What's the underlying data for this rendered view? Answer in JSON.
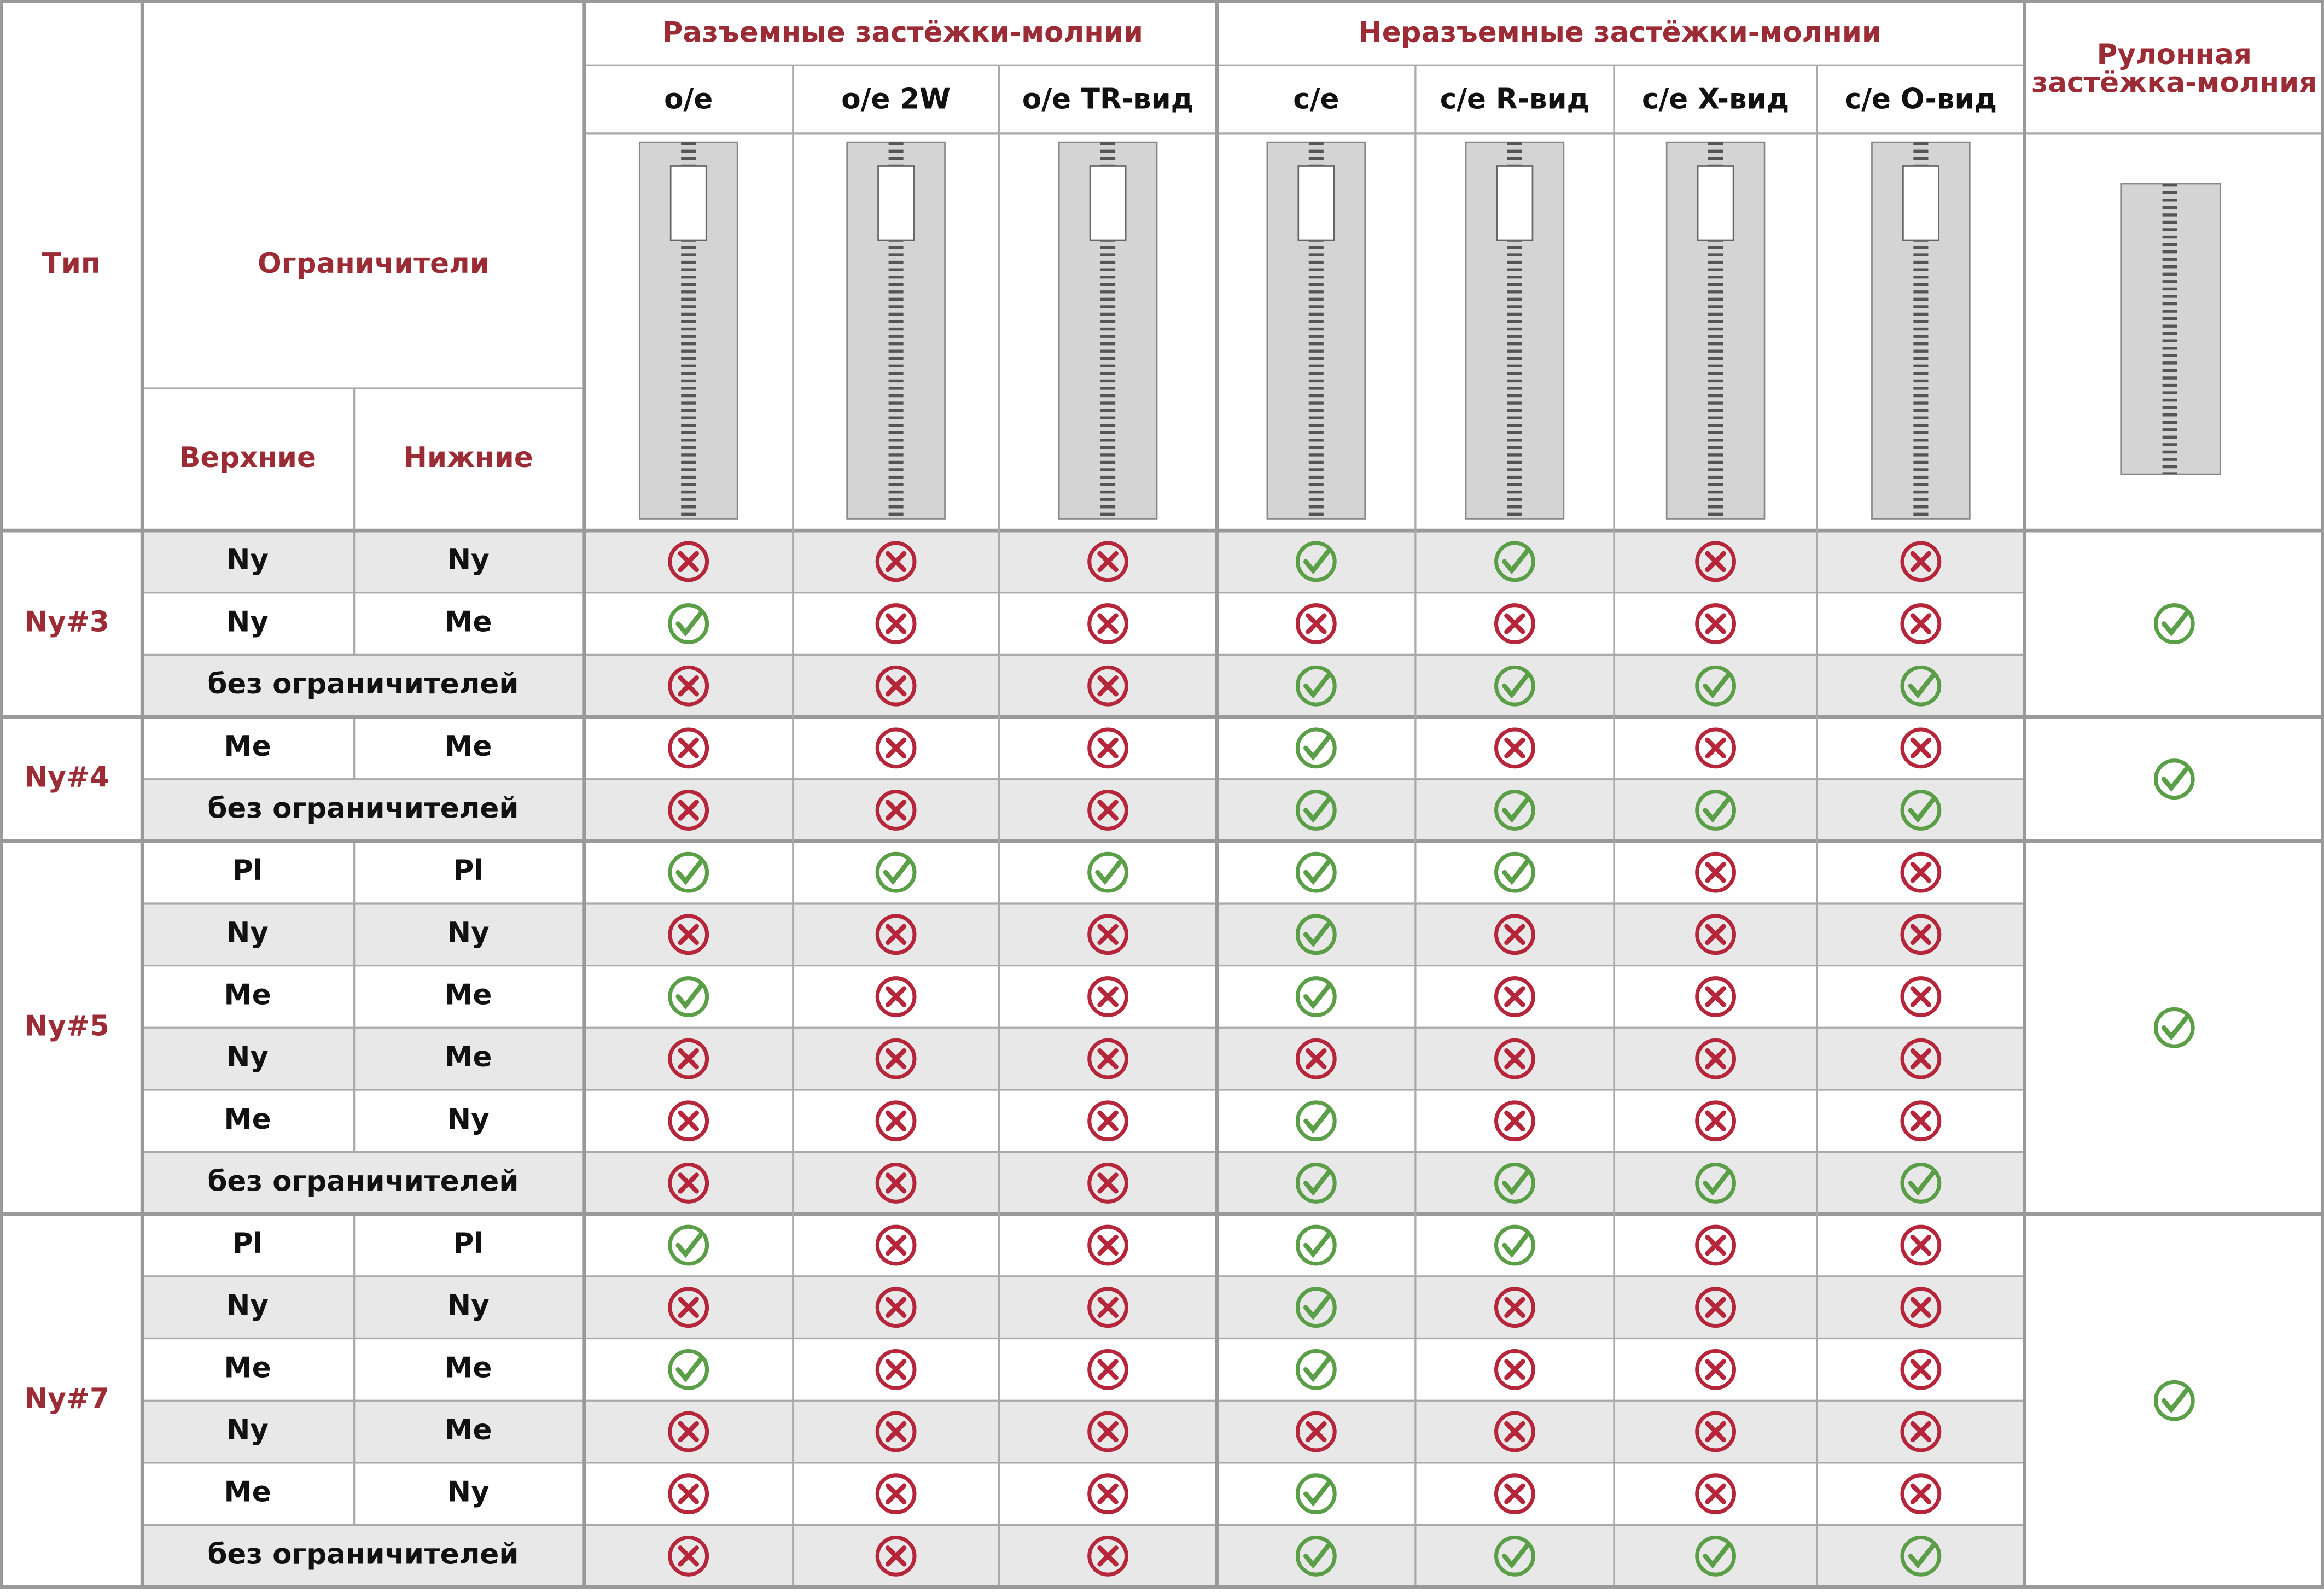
{
  "header": {
    "type": "Тип",
    "limiters": "Ограничители",
    "top": "Верхние",
    "bottom": "Нижние",
    "groups": [
      {
        "title": "Разъемные застёжки-молнии",
        "columns": [
          "o/e",
          "o/e 2W",
          "o/e TR-вид"
        ]
      },
      {
        "title": "Неразъемные застёжки-молнии",
        "columns": [
          "c/e",
          "c/e R-вид",
          "c/e X-вид",
          "c/e O-вид"
        ]
      }
    ],
    "roll": [
      "Рулонная",
      "застёжка-молния"
    ]
  },
  "sections": [
    {
      "type": "Ny#3",
      "roll": true,
      "rows": [
        {
          "top": "Ny",
          "bottom": "Ny",
          "marks": [
            false,
            false,
            false,
            true,
            true,
            false,
            false
          ]
        },
        {
          "top": "Ny",
          "bottom": "Me",
          "marks": [
            true,
            false,
            false,
            false,
            false,
            false,
            false
          ]
        },
        {
          "none": "без ограничителей",
          "marks": [
            false,
            false,
            false,
            true,
            true,
            true,
            true
          ]
        }
      ]
    },
    {
      "type": "Ny#4",
      "roll": true,
      "rows": [
        {
          "top": "Me",
          "bottom": "Me",
          "marks": [
            false,
            false,
            false,
            true,
            false,
            false,
            false
          ]
        },
        {
          "none": "без ограничителей",
          "marks": [
            false,
            false,
            false,
            true,
            true,
            true,
            true
          ]
        }
      ]
    },
    {
      "type": "Ny#5",
      "roll": true,
      "rows": [
        {
          "top": "Pl",
          "bottom": "Pl",
          "marks": [
            true,
            true,
            true,
            true,
            true,
            false,
            false
          ]
        },
        {
          "top": "Ny",
          "bottom": "Ny",
          "marks": [
            false,
            false,
            false,
            true,
            false,
            false,
            false
          ]
        },
        {
          "top": "Me",
          "bottom": "Me",
          "marks": [
            true,
            false,
            false,
            true,
            false,
            false,
            false
          ]
        },
        {
          "top": "Ny",
          "bottom": "Me",
          "marks": [
            false,
            false,
            false,
            false,
            false,
            false,
            false
          ]
        },
        {
          "top": "Me",
          "bottom": "Ny",
          "marks": [
            false,
            false,
            false,
            true,
            false,
            false,
            false
          ]
        },
        {
          "none": "без ограничителей",
          "marks": [
            false,
            false,
            false,
            true,
            true,
            true,
            true
          ]
        }
      ]
    },
    {
      "type": "Ny#7",
      "roll": true,
      "rows": [
        {
          "top": "Pl",
          "bottom": "Pl",
          "marks": [
            true,
            false,
            false,
            true,
            true,
            false,
            false
          ]
        },
        {
          "top": "Ny",
          "bottom": "Ny",
          "marks": [
            false,
            false,
            false,
            true,
            false,
            false,
            false
          ]
        },
        {
          "top": "Me",
          "bottom": "Me",
          "marks": [
            true,
            false,
            false,
            true,
            false,
            false,
            false
          ]
        },
        {
          "top": "Ny",
          "bottom": "Me",
          "marks": [
            false,
            false,
            false,
            false,
            false,
            false,
            false
          ]
        },
        {
          "top": "Me",
          "bottom": "Ny",
          "marks": [
            false,
            false,
            false,
            true,
            false,
            false,
            false
          ]
        },
        {
          "none": "без ограничителей",
          "marks": [
            false,
            false,
            false,
            true,
            true,
            true,
            true
          ]
        }
      ]
    }
  ]
}
